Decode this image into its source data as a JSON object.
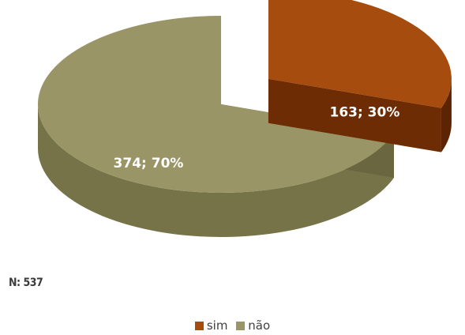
{
  "chart_data": {
    "type": "pie",
    "style": "3d-exploded",
    "total_label": "N: 537",
    "legend_position": "bottom",
    "slices": [
      {
        "name": "sim",
        "value": 163,
        "percent": 30,
        "label": "163; 30%",
        "color": "#a64c0e",
        "side_color": "#6e2c04",
        "exploded": true
      },
      {
        "name": "não",
        "value": 374,
        "percent": 70,
        "label": "374; 70%",
        "color": "#9a9566",
        "side_color": "#777349",
        "exploded": false
      }
    ]
  }
}
